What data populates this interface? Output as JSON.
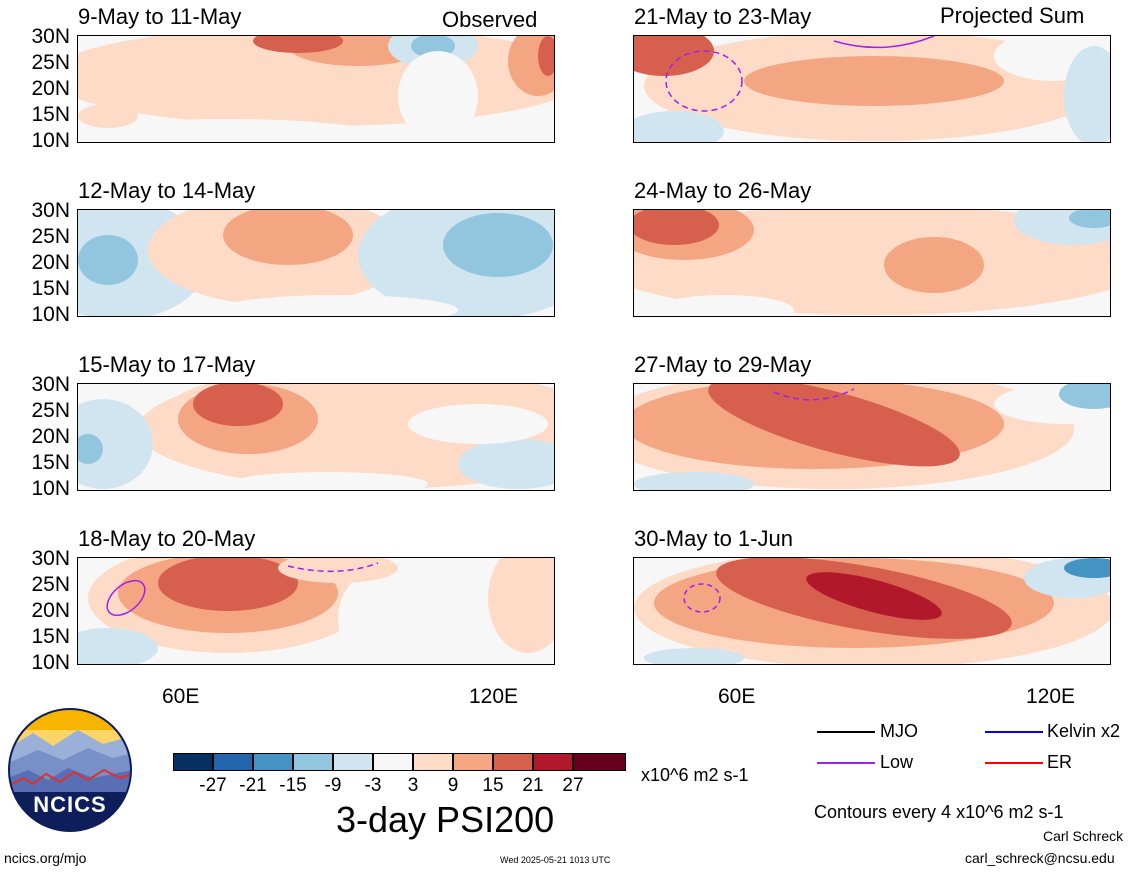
{
  "panels_left": [
    {
      "title": "9-May to 11-May"
    },
    {
      "title": "12-May to 14-May"
    },
    {
      "title": "15-May to 17-May"
    },
    {
      "title": "18-May to 20-May"
    }
  ],
  "panels_right": [
    {
      "title": "21-May to 23-May"
    },
    {
      "title": "24-May to 26-May"
    },
    {
      "title": "27-May to 29-May"
    },
    {
      "title": "30-May to 1-Jun"
    }
  ],
  "headers": {
    "left": "Observed",
    "right": "Projected Sum"
  },
  "lat_labels": [
    "30N",
    "25N",
    "20N",
    "15N",
    "10N"
  ],
  "lon_labels": [
    "60E",
    "120E"
  ],
  "colorbar": {
    "colors": [
      "#053061",
      "#2166ac",
      "#4393c3",
      "#92c5de",
      "#d1e5f0",
      "#f7f7f7",
      "#fddbc7",
      "#f4a582",
      "#d6604d",
      "#b2182b",
      "#67001f"
    ],
    "labels": [
      "-27",
      "-21",
      "-15",
      "-9",
      "-3",
      "3",
      "9",
      "15",
      "21",
      "27"
    ],
    "units": "x10^6 m2 s-1"
  },
  "title": "3-day PSI200",
  "legend": [
    {
      "label": "MJO",
      "color": "#000000"
    },
    {
      "label": "Kelvin x2",
      "color": "#0000ff"
    },
    {
      "label": "Low",
      "color": "#a020f0"
    },
    {
      "label": "ER",
      "color": "#ff0000"
    }
  ],
  "contour_note": "Contours every 4 x10^6 m2 s-1",
  "author": "Carl Schreck",
  "email": "carl_schreck@ncsu.edu",
  "site": "ncics.org/mjo",
  "timestamp": "Wed 2025-05-21 1013 UTC",
  "logo_text": "NCICS"
}
